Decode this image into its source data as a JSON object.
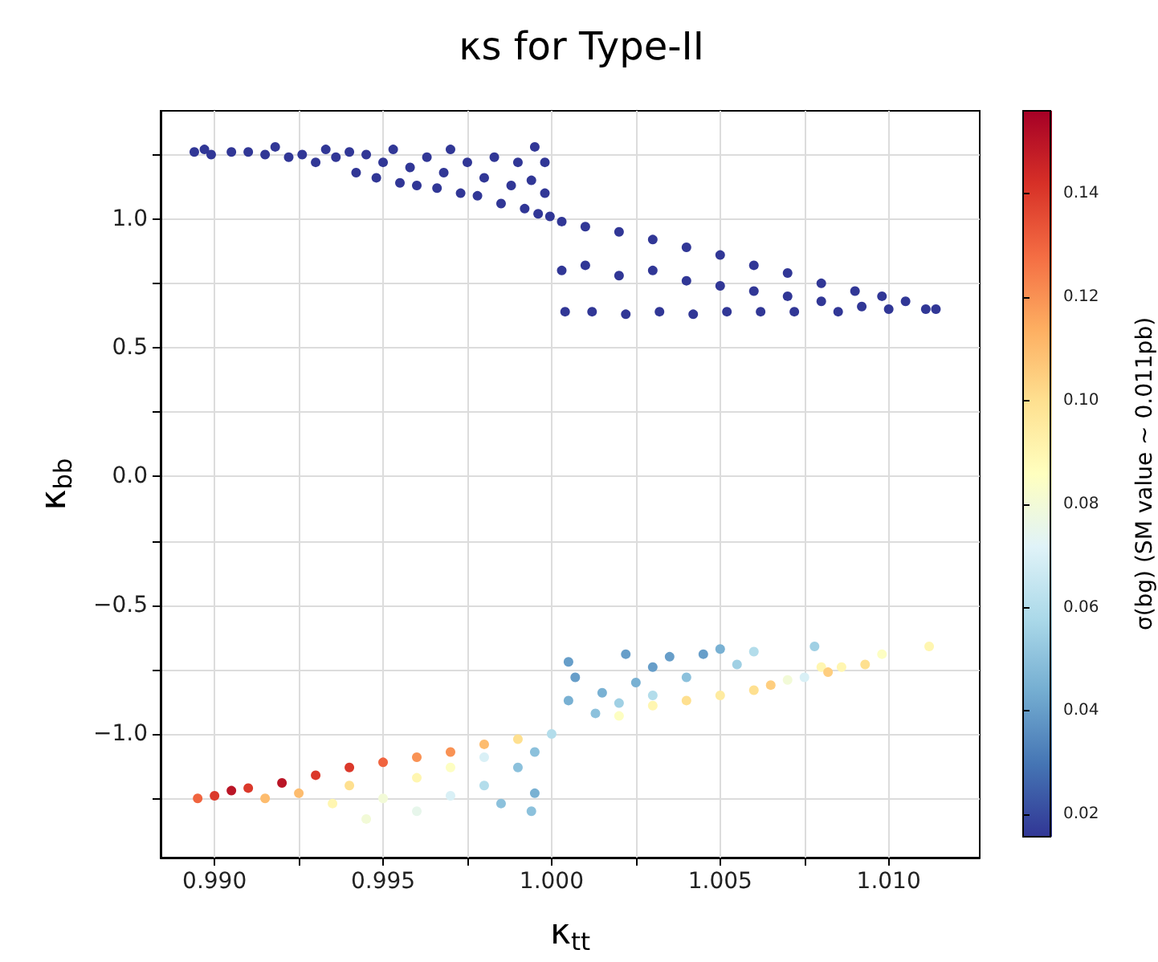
{
  "chart_data": {
    "type": "scatter",
    "title": "κs for Type-II",
    "xlabel": "κ$_{tt}$",
    "ylabel": "κ$_{bb}$",
    "clabel": "σ(bg) (SM value ~ 0.011pb)",
    "xlim": [
      0.9884,
      1.0127
    ],
    "ylim": [
      -1.48,
      1.42
    ],
    "xticks": [
      {
        "value": 0.99,
        "label": "0.990"
      },
      {
        "value": 0.9925,
        "label": null
      },
      {
        "value": 0.995,
        "label": "0.995"
      },
      {
        "value": 0.9975,
        "label": null
      },
      {
        "value": 1.0,
        "label": "1.000"
      },
      {
        "value": 1.0025,
        "label": null
      },
      {
        "value": 1.005,
        "label": "1.005"
      },
      {
        "value": 1.0075,
        "label": null
      },
      {
        "value": 1.01,
        "label": "1.010"
      }
    ],
    "yticks": [
      {
        "value": -1.25,
        "label": null
      },
      {
        "value": -1.0,
        "label": "−1.0"
      },
      {
        "value": -0.75,
        "label": null
      },
      {
        "value": -0.5,
        "label": "−0.5"
      },
      {
        "value": -0.25,
        "label": null
      },
      {
        "value": 0,
        "label": "0.0"
      },
      {
        "value": 0.25,
        "label": null
      },
      {
        "value": 0.5,
        "label": "0.5"
      },
      {
        "value": 0.75,
        "label": null
      },
      {
        "value": 1.0,
        "label": "1.0"
      },
      {
        "value": 1.25,
        "label": null
      }
    ],
    "clim": [
      0.0157,
      0.156
    ],
    "cticks": [
      0.02,
      0.04,
      0.06,
      0.08,
      {
        "value": 0.1,
        "label": "0.10"
      },
      0.12,
      0.14
    ],
    "grid": true,
    "marker": "circle",
    "series": [
      {
        "x": [
          0.9894,
          0.9897,
          0.9899,
          0.9905,
          0.991,
          0.9915,
          0.9918,
          0.9922,
          0.9926,
          0.993,
          0.9933,
          0.9936,
          0.994,
          0.9942,
          0.9945,
          0.9948,
          0.995,
          0.9953,
          0.9955,
          0.9958,
          0.996,
          0.9963,
          0.9966,
          0.9968,
          0.997,
          0.9973,
          0.9975,
          0.9978,
          0.998,
          0.9983,
          0.9985,
          0.9988,
          0.999,
          0.9992,
          0.9994,
          0.9995,
          0.9996,
          0.9998,
          0.9998,
          0.99995,
          1.0003,
          1.0003,
          1.0004,
          1.001,
          1.001,
          1.0012,
          1.002,
          1.002,
          1.0022,
          1.003,
          1.003,
          1.0032,
          1.004,
          1.004,
          1.0042,
          1.005,
          1.005,
          1.0052,
          1.006,
          1.006,
          1.0062,
          1.007,
          1.007,
          1.0072,
          1.008,
          1.008,
          1.0085,
          1.009,
          1.0092,
          1.0098,
          1.01,
          1.0105,
          1.0111,
          1.0114,
          0.9895,
          0.99,
          0.9905,
          0.991,
          0.992,
          0.993,
          0.994,
          0.995,
          0.996,
          0.997,
          0.998,
          0.999,
          0.9915,
          0.9925,
          0.9935,
          0.994,
          0.9945,
          0.995,
          0.996,
          0.996,
          0.997,
          0.997,
          0.998,
          0.998,
          0.9985,
          0.999,
          0.9995,
          0.9995,
          0.9994,
          1.0,
          1.0005,
          1.0007,
          1.0005,
          1.0015,
          1.0022,
          1.0025,
          1.003,
          1.0035,
          1.004,
          1.0045,
          1.005,
          1.0055,
          1.006,
          1.0013,
          1.002,
          1.003,
          1.002,
          1.003,
          1.004,
          1.005,
          1.006,
          1.0065,
          1.007,
          1.0075,
          1.008,
          1.0082,
          1.0086,
          1.0093,
          1.0098,
          1.0112,
          1.0078
        ],
        "values": [
          1.26,
          1.27,
          1.25,
          1.26,
          1.26,
          1.25,
          1.28,
          1.24,
          1.25,
          1.22,
          1.27,
          1.24,
          1.26,
          1.18,
          1.25,
          1.16,
          1.22,
          1.27,
          1.14,
          1.2,
          1.13,
          1.24,
          1.12,
          1.18,
          1.27,
          1.1,
          1.22,
          1.09,
          1.16,
          1.24,
          1.06,
          1.13,
          1.22,
          1.04,
          1.15,
          1.28,
          1.02,
          1.1,
          1.22,
          1.01,
          0.99,
          0.8,
          0.64,
          0.97,
          0.82,
          0.64,
          0.95,
          0.78,
          0.63,
          0.92,
          0.8,
          0.64,
          0.89,
          0.76,
          0.63,
          0.86,
          0.74,
          0.64,
          0.82,
          0.72,
          0.64,
          0.79,
          0.7,
          0.64,
          0.75,
          0.68,
          0.64,
          0.72,
          0.66,
          0.7,
          0.65,
          0.68,
          0.65,
          0.65,
          -1.25,
          -1.24,
          -1.22,
          -1.21,
          -1.19,
          -1.16,
          -1.13,
          -1.11,
          -1.09,
          -1.07,
          -1.04,
          -1.02,
          -1.25,
          -1.23,
          -1.27,
          -1.2,
          -1.33,
          -1.25,
          -1.3,
          -1.17,
          -1.24,
          -1.13,
          -1.2,
          -1.09,
          -1.27,
          -1.13,
          -1.23,
          -1.07,
          -1.3,
          -1.0,
          -0.72,
          -0.78,
          -0.87,
          -0.84,
          -0.69,
          -0.8,
          -0.74,
          -0.7,
          -0.78,
          -0.69,
          -0.67,
          -0.73,
          -0.68,
          -0.92,
          -0.88,
          -0.85,
          -0.93,
          -0.89,
          -0.87,
          -0.85,
          -0.83,
          -0.81,
          -0.79,
          -0.78,
          -0.74,
          -0.76,
          -0.74,
          -0.73,
          -0.69,
          -0.66,
          -0.66
        ],
        "cvalues": [
          0.016,
          0.016,
          0.016,
          0.016,
          0.016,
          0.016,
          0.016,
          0.016,
          0.016,
          0.016,
          0.016,
          0.016,
          0.016,
          0.016,
          0.016,
          0.016,
          0.016,
          0.016,
          0.016,
          0.016,
          0.016,
          0.016,
          0.016,
          0.016,
          0.016,
          0.016,
          0.016,
          0.016,
          0.016,
          0.016,
          0.016,
          0.016,
          0.016,
          0.016,
          0.016,
          0.016,
          0.016,
          0.016,
          0.016,
          0.016,
          0.016,
          0.016,
          0.016,
          0.016,
          0.016,
          0.016,
          0.016,
          0.016,
          0.016,
          0.016,
          0.016,
          0.016,
          0.016,
          0.016,
          0.016,
          0.016,
          0.016,
          0.016,
          0.016,
          0.016,
          0.016,
          0.016,
          0.016,
          0.016,
          0.016,
          0.016,
          0.016,
          0.016,
          0.016,
          0.016,
          0.016,
          0.016,
          0.016,
          0.016,
          0.13,
          0.14,
          0.15,
          0.14,
          0.15,
          0.14,
          0.14,
          0.13,
          0.12,
          0.12,
          0.11,
          0.1,
          0.11,
          0.11,
          0.09,
          0.1,
          0.08,
          0.08,
          0.075,
          0.09,
          0.07,
          0.085,
          0.06,
          0.07,
          0.05,
          0.05,
          0.045,
          0.05,
          0.05,
          0.06,
          0.04,
          0.04,
          0.045,
          0.045,
          0.04,
          0.045,
          0.04,
          0.04,
          0.05,
          0.04,
          0.045,
          0.055,
          0.06,
          0.05,
          0.055,
          0.06,
          0.085,
          0.09,
          0.1,
          0.095,
          0.1,
          0.105,
          0.08,
          0.07,
          0.09,
          0.105,
          0.09,
          0.1,
          0.085,
          0.09,
          0.055
        ]
      }
    ]
  }
}
